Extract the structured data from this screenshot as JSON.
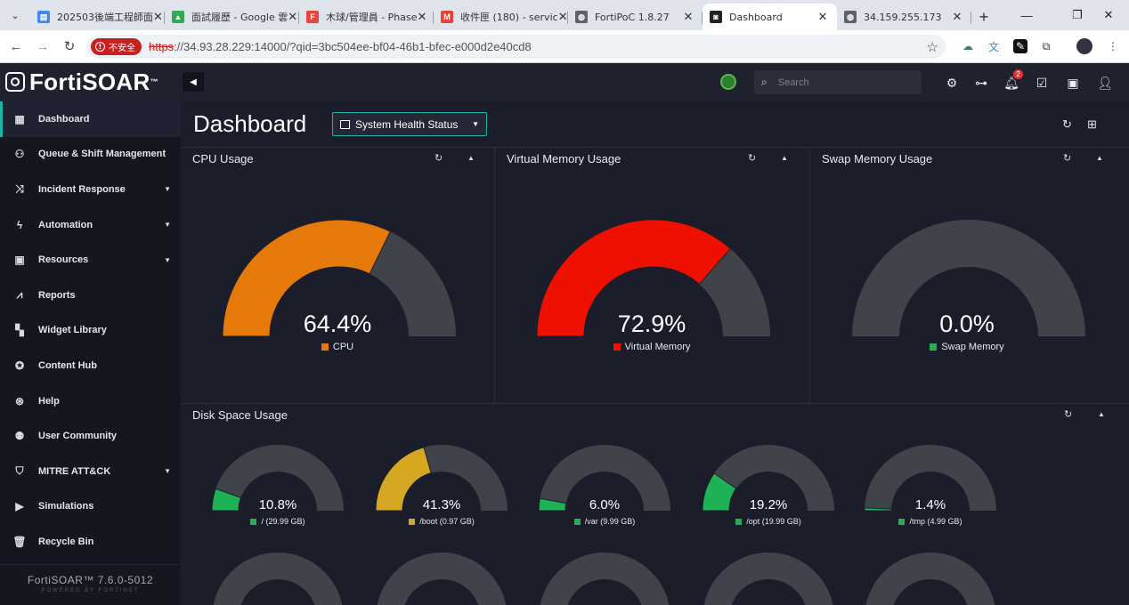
{
  "browser": {
    "tabs": [
      {
        "title": "202503後端工程師面",
        "color": "#4285f4",
        "glyph": "▤"
      },
      {
        "title": "面試履歷 - Google 雲",
        "color": "#34a853",
        "glyph": "▲"
      },
      {
        "title": "木球/管理員 - Phase",
        "color": "#e8453c",
        "glyph": "F"
      },
      {
        "title": "收件匣 (180) - servic",
        "color": "#ea4335",
        "glyph": "M"
      },
      {
        "title": "FortiPoC 1.8.27",
        "color": "#5f6368",
        "glyph": "◍"
      },
      {
        "title": "Dashboard",
        "color": "#222222",
        "glyph": "◙"
      },
      {
        "title": "34.159.255.173",
        "color": "#5f6368",
        "glyph": "◍"
      }
    ],
    "insecure_label": "不安全",
    "url_scheme": "https",
    "url_rest": "://34.93.28.229:14000/?qid=3bc504ee-bf04-46b1-bfec-e000d2e40cd8"
  },
  "app": {
    "logo_text": "FortiSOAR",
    "logo_tm": "™",
    "search_placeholder": "Search",
    "notification_count": "2"
  },
  "sidebar": {
    "items": [
      {
        "label": "Dashboard",
        "icon": "dashboard-icon",
        "glyph": "▦",
        "caret": false
      },
      {
        "label": "Queue & Shift Management",
        "icon": "people-icon",
        "glyph": "⚇",
        "caret": false
      },
      {
        "label": "Incident Response",
        "icon": "shuffle-icon",
        "glyph": "⤨",
        "caret": true
      },
      {
        "label": "Automation",
        "icon": "lightning-icon",
        "glyph": "ϟ",
        "caret": true
      },
      {
        "label": "Resources",
        "icon": "briefcase-icon",
        "glyph": "▣",
        "caret": true
      },
      {
        "label": "Reports",
        "icon": "chart-icon",
        "glyph": "⩘",
        "caret": false
      },
      {
        "label": "Widget Library",
        "icon": "widgets-icon",
        "glyph": "▚",
        "caret": false
      },
      {
        "label": "Content Hub",
        "icon": "hub-icon",
        "glyph": "✪",
        "caret": false
      },
      {
        "label": "Help",
        "icon": "help-icon",
        "glyph": "⊛",
        "caret": false
      },
      {
        "label": "User Community",
        "icon": "community-icon",
        "glyph": "⚉",
        "caret": false
      },
      {
        "label": "MITRE ATT&CK",
        "icon": "shield-icon",
        "glyph": "⛉",
        "caret": true
      },
      {
        "label": "Simulations",
        "icon": "play-icon",
        "glyph": "▶",
        "caret": false
      },
      {
        "label": "Recycle Bin",
        "icon": "trash-icon",
        "glyph": "🗑",
        "caret": false
      }
    ],
    "version": "FortiSOAR™  7.6.0-5012",
    "powered": "POWERED BY FORTINET"
  },
  "main": {
    "title": "Dashboard",
    "selected_dashboard": "System Health Status"
  },
  "chart_data": [
    {
      "type": "gauge",
      "title": "CPU Usage",
      "value": 64.4,
      "label": "64.4%",
      "legend": "CPU",
      "color": "#e57a0a"
    },
    {
      "type": "gauge",
      "title": "Virtual Memory Usage",
      "value": 72.9,
      "label": "72.9%",
      "legend": "Virtual Memory",
      "color": "#f01000"
    },
    {
      "type": "gauge",
      "title": "Swap Memory Usage",
      "value": 0.0,
      "label": "0.0%",
      "legend": "Swap Memory",
      "color": "#1fb155"
    },
    {
      "type": "gauge",
      "title": "Disk Space Usage",
      "items": [
        {
          "value": 10.8,
          "label": "10.8%",
          "legend": "/ (29.99 GB)",
          "color": "#1fb155"
        },
        {
          "value": 41.3,
          "label": "41.3%",
          "legend": "/boot (0.97 GB)",
          "color": "#d6a822"
        },
        {
          "value": 6.0,
          "label": "6.0%",
          "legend": "/var (9.99 GB)",
          "color": "#1fb155"
        },
        {
          "value": 19.2,
          "label": "19.2%",
          "legend": "/opt (19.99 GB)",
          "color": "#1fb155"
        },
        {
          "value": 1.4,
          "label": "1.4%",
          "legend": "/tmp (4.99 GB)",
          "color": "#1fb155"
        }
      ]
    }
  ],
  "colors": {
    "track": "#404349",
    "accent": "#1cb3a6"
  }
}
